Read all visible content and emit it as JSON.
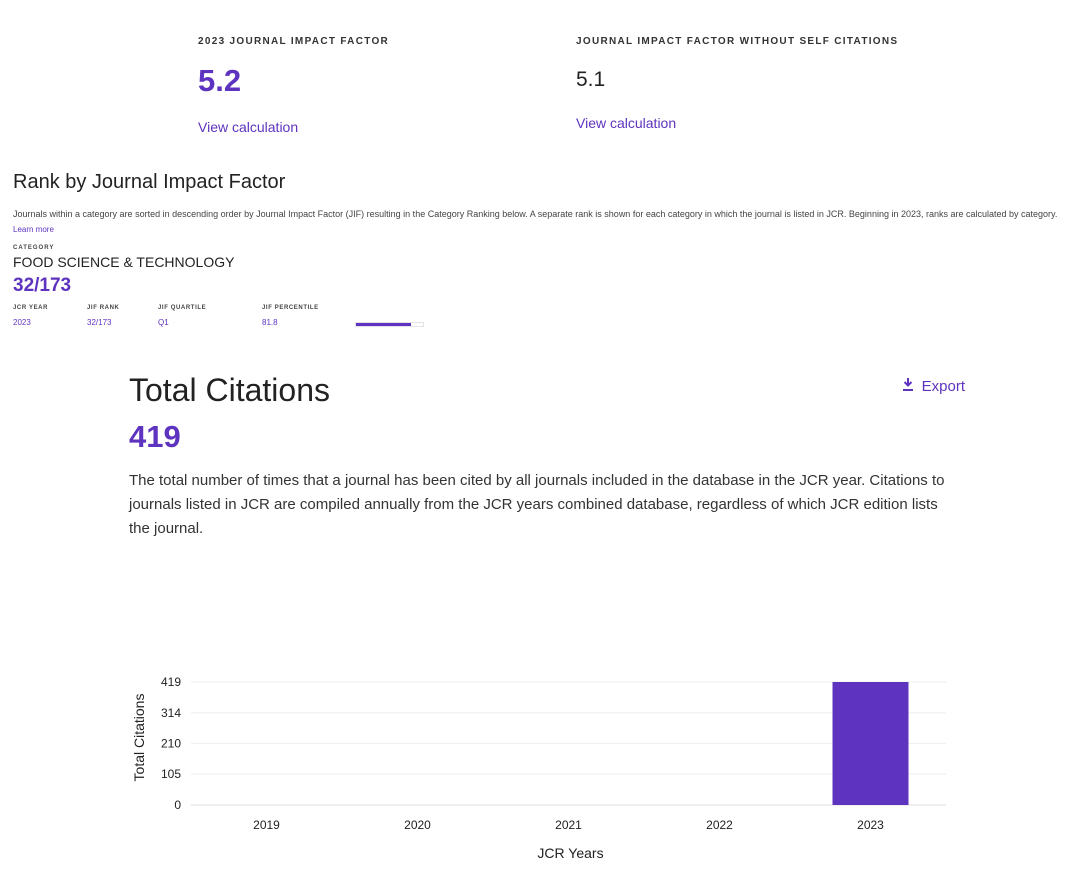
{
  "metrics": {
    "jif_label": "2023 JOURNAL IMPACT FACTOR",
    "jif_value": "5.2",
    "jif_link": "View calculation",
    "jif_wosc_label": "JOURNAL IMPACT FACTOR WITHOUT SELF CITATIONS",
    "jif_wosc_value": "5.1",
    "jif_wosc_link": "View calculation"
  },
  "rank": {
    "title": "Rank by Journal Impact Factor",
    "description": "Journals within a category are sorted in descending order by Journal Impact Factor (JIF) resulting in the Category Ranking below. A separate rank is shown for each category in which the journal is listed in JCR. Beginning in 2023, ranks are calculated by category.",
    "learn_more": "Learn more",
    "category_label": "CATEGORY",
    "category_name": "FOOD SCIENCE & TECHNOLOGY",
    "category_rank": "32/173",
    "table": {
      "headers": [
        "JCR YEAR",
        "JIF RANK",
        "JIF QUARTILE",
        "JIF PERCENTILE"
      ],
      "row": [
        "2023",
        "32/173",
        "Q1",
        "81.8"
      ]
    },
    "percentile": 81.8,
    "accent_color": "#5e33bf"
  },
  "total_citations": {
    "title": "Total Citations",
    "value": "419",
    "export_label": "Export",
    "export_icon": "download-icon",
    "description": "The total number of times that a journal has been cited by all journals included in the database in the JCR year. Citations to journals listed in JCR are compiled annually from the JCR years combined database, regardless of which JCR edition lists the journal."
  },
  "chart_data": {
    "type": "bar",
    "categories": [
      "2019",
      "2020",
      "2021",
      "2022",
      "2023"
    ],
    "values": [
      0,
      0,
      0,
      0,
      419
    ],
    "xlabel": "JCR Years",
    "ylabel": "Total Citations",
    "yticks": [
      0,
      105,
      210,
      314,
      419
    ],
    "ylim": [
      0,
      419
    ],
    "grid": true,
    "bar_color": "#5e33bf"
  }
}
